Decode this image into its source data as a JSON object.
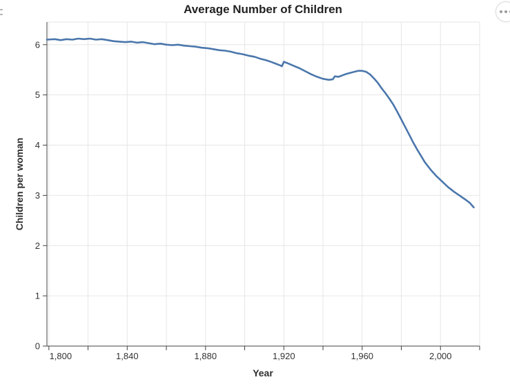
{
  "chart_data": {
    "type": "line",
    "title": "Average Number of Children",
    "xlabel": "Year",
    "ylabel": "Children per woman",
    "legend": "none",
    "grid": true,
    "xlim": [
      1799,
      2020
    ],
    "ylim": [
      0,
      6.45
    ],
    "x_major_ticks": [
      {
        "year": 1800,
        "label": "1,800"
      },
      {
        "year": 1840,
        "label": "1,840"
      },
      {
        "year": 1880,
        "label": "1,880"
      },
      {
        "year": 1920,
        "label": "1,920"
      },
      {
        "year": 1960,
        "label": "1,960"
      },
      {
        "year": 2000,
        "label": "2,000"
      }
    ],
    "x_minor_ticks": [
      1800,
      1820,
      1840,
      1860,
      1880,
      1900,
      1920,
      1940,
      1960,
      1980,
      2000,
      2020
    ],
    "y_ticks": [
      {
        "value": 0,
        "label": "0"
      },
      {
        "value": 1,
        "label": "1"
      },
      {
        "value": 2,
        "label": "2"
      },
      {
        "value": 3,
        "label": "3"
      },
      {
        "value": 4,
        "label": "4"
      },
      {
        "value": 5,
        "label": "5"
      },
      {
        "value": 6,
        "label": "6"
      }
    ],
    "colors": {
      "line": "#4a76ab",
      "grid": "#e6e6e6",
      "axis": "#404040",
      "tick_label": "#333333",
      "title": "#222222"
    },
    "series": [
      {
        "name": "Children per woman",
        "points": [
          [
            1799,
            6.1
          ],
          [
            1803,
            6.11
          ],
          [
            1806,
            6.09
          ],
          [
            1809,
            6.11
          ],
          [
            1812,
            6.1
          ],
          [
            1815,
            6.12
          ],
          [
            1818,
            6.11
          ],
          [
            1821,
            6.12
          ],
          [
            1824,
            6.1
          ],
          [
            1827,
            6.11
          ],
          [
            1830,
            6.09
          ],
          [
            1833,
            6.07
          ],
          [
            1836,
            6.06
          ],
          [
            1839,
            6.05
          ],
          [
            1842,
            6.06
          ],
          [
            1845,
            6.04
          ],
          [
            1848,
            6.05
          ],
          [
            1851,
            6.03
          ],
          [
            1854,
            6.01
          ],
          [
            1857,
            6.02
          ],
          [
            1860,
            6.0
          ],
          [
            1863,
            5.99
          ],
          [
            1866,
            6.0
          ],
          [
            1869,
            5.98
          ],
          [
            1872,
            5.97
          ],
          [
            1875,
            5.96
          ],
          [
            1878,
            5.94
          ],
          [
            1881,
            5.93
          ],
          [
            1884,
            5.91
          ],
          [
            1887,
            5.89
          ],
          [
            1890,
            5.88
          ],
          [
            1893,
            5.86
          ],
          [
            1896,
            5.83
          ],
          [
            1899,
            5.81
          ],
          [
            1902,
            5.78
          ],
          [
            1905,
            5.76
          ],
          [
            1908,
            5.72
          ],
          [
            1911,
            5.69
          ],
          [
            1914,
            5.65
          ],
          [
            1916,
            5.62
          ],
          [
            1918,
            5.59
          ],
          [
            1919,
            5.57
          ],
          [
            1920,
            5.66
          ],
          [
            1922,
            5.63
          ],
          [
            1925,
            5.58
          ],
          [
            1928,
            5.53
          ],
          [
            1931,
            5.47
          ],
          [
            1934,
            5.41
          ],
          [
            1937,
            5.36
          ],
          [
            1940,
            5.32
          ],
          [
            1943,
            5.3
          ],
          [
            1945,
            5.31
          ],
          [
            1946,
            5.37
          ],
          [
            1948,
            5.36
          ],
          [
            1950,
            5.39
          ],
          [
            1952,
            5.42
          ],
          [
            1954,
            5.44
          ],
          [
            1956,
            5.46
          ],
          [
            1958,
            5.48
          ],
          [
            1960,
            5.48
          ],
          [
            1962,
            5.46
          ],
          [
            1964,
            5.41
          ],
          [
            1966,
            5.33
          ],
          [
            1968,
            5.24
          ],
          [
            1970,
            5.13
          ],
          [
            1972,
            5.03
          ],
          [
            1974,
            4.92
          ],
          [
            1976,
            4.8
          ],
          [
            1978,
            4.66
          ],
          [
            1980,
            4.51
          ],
          [
            1982,
            4.36
          ],
          [
            1984,
            4.21
          ],
          [
            1986,
            4.06
          ],
          [
            1988,
            3.92
          ],
          [
            1990,
            3.79
          ],
          [
            1992,
            3.66
          ],
          [
            1995,
            3.51
          ],
          [
            1998,
            3.38
          ],
          [
            2001,
            3.27
          ],
          [
            2004,
            3.16
          ],
          [
            2007,
            3.07
          ],
          [
            2010,
            2.99
          ],
          [
            2013,
            2.91
          ],
          [
            2015,
            2.85
          ],
          [
            2017,
            2.76
          ]
        ]
      }
    ]
  },
  "context_menu": {
    "icon": "ellipsis-icon",
    "dot_count": 3
  },
  "edge_grip": {
    "icon": "grip-dots-icon",
    "dash_count": 2
  }
}
